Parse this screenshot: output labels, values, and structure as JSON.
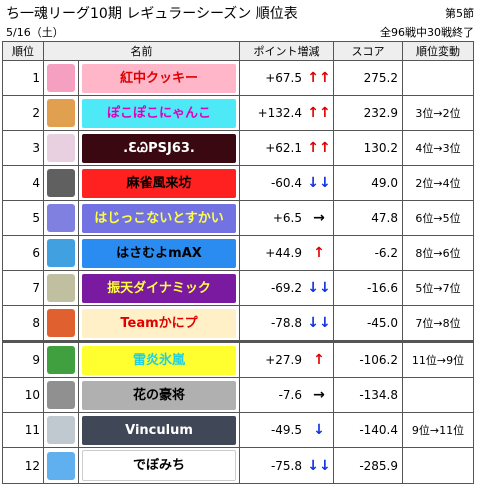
{
  "header": {
    "title": "ち一魂リーグ10期 レギュラーシーズン 順位表",
    "round": "第5節",
    "date": "5/16（土）",
    "progress": "全96戦中30戦終了"
  },
  "table": {
    "columns": [
      "順位",
      "名前",
      "ポイント増減",
      "スコア",
      "順位変動"
    ],
    "rows": [
      {
        "rank": "1",
        "name": "紅中クッキー",
        "name_bg": "#ffb6c8",
        "name_color": "#e00000",
        "points": "+67.5",
        "arrow": "↑↑",
        "arrow_color": "#e00000",
        "score": "275.2",
        "change": "",
        "icon": "#f5a0c0"
      },
      {
        "rank": "2",
        "name": "ぽこぽこにゃんこ",
        "name_bg": "#4ee9f7",
        "name_color": "#e000c0",
        "points": "+132.4",
        "arrow": "↑↑",
        "arrow_color": "#e00000",
        "score": "232.9",
        "change": "3位→2位",
        "icon": "#e0a050"
      },
      {
        "rank": "3",
        "name": ".ƐᏊPSJ63.",
        "name_bg": "#3a0810",
        "name_color": "#ffffff",
        "points": "+62.1",
        "arrow": "↑↑",
        "arrow_color": "#e00000",
        "score": "130.2",
        "change": "4位→3位",
        "icon": "#e8d0e0"
      },
      {
        "rank": "4",
        "name": "麻雀風来坊",
        "name_bg": "#ff2020",
        "name_color": "#000000",
        "points": "-60.4",
        "arrow": "↓↓",
        "arrow_color": "#1030e0",
        "score": "49.0",
        "change": "2位→4位",
        "icon": "#606060"
      },
      {
        "rank": "5",
        "name": "はじっこないとすかい",
        "name_bg": "#7272e2",
        "name_color": "#ffff40",
        "points": "+6.5",
        "arrow": "→",
        "arrow_color": "#000000",
        "score": "47.8",
        "change": "6位→5位",
        "icon": "#8080e0"
      },
      {
        "rank": "6",
        "name": "はさむよmAX",
        "name_bg": "#2a8cf0",
        "name_color": "#000000",
        "points": "+44.9",
        "arrow": "↑",
        "arrow_color": "#e00000",
        "score": "-6.2",
        "change": "8位→6位",
        "icon": "#40a0e0"
      },
      {
        "rank": "7",
        "name": "振天ダイナミック",
        "name_bg": "#7a1aa0",
        "name_color": "#ffff40",
        "points": "-69.2",
        "arrow": "↓↓",
        "arrow_color": "#1030e0",
        "score": "-16.6",
        "change": "5位→7位",
        "icon": "#c0c0a0"
      },
      {
        "rank": "8",
        "name": "Teamかにプ",
        "name_bg": "#fff0c8",
        "name_color": "#e00000",
        "points": "-78.8",
        "arrow": "↓↓",
        "arrow_color": "#1030e0",
        "score": "-45.0",
        "change": "7位→8位",
        "icon": "#e06030"
      },
      {
        "rank": "9",
        "name": "雷炎氷嵐",
        "name_bg": "#ffff30",
        "name_color": "#20d0e0",
        "points": "+27.9",
        "arrow": "↑",
        "arrow_color": "#e00000",
        "score": "-106.2",
        "change": "11位→9位",
        "icon": "#40a040"
      },
      {
        "rank": "10",
        "name": "花の豪将",
        "name_bg": "#b0b0b0",
        "name_color": "#000000",
        "points": "-7.6",
        "arrow": "→",
        "arrow_color": "#000000",
        "score": "-134.8",
        "change": "",
        "icon": "#909090"
      },
      {
        "rank": "11",
        "name": "Vinculum",
        "name_bg": "#404858",
        "name_color": "#ffffff",
        "points": "-49.5",
        "arrow": "↓",
        "arrow_color": "#1030e0",
        "score": "-140.4",
        "change": "9位→11位",
        "icon": "#c0c8d0"
      },
      {
        "rank": "12",
        "name": "でぼみち",
        "name_bg": "#ffffff",
        "name_color": "#000000",
        "points": "-75.8",
        "arrow": "↓↓",
        "arrow_color": "#1030e0",
        "score": "-285.9",
        "change": "",
        "icon": "#60b0f0"
      }
    ]
  }
}
